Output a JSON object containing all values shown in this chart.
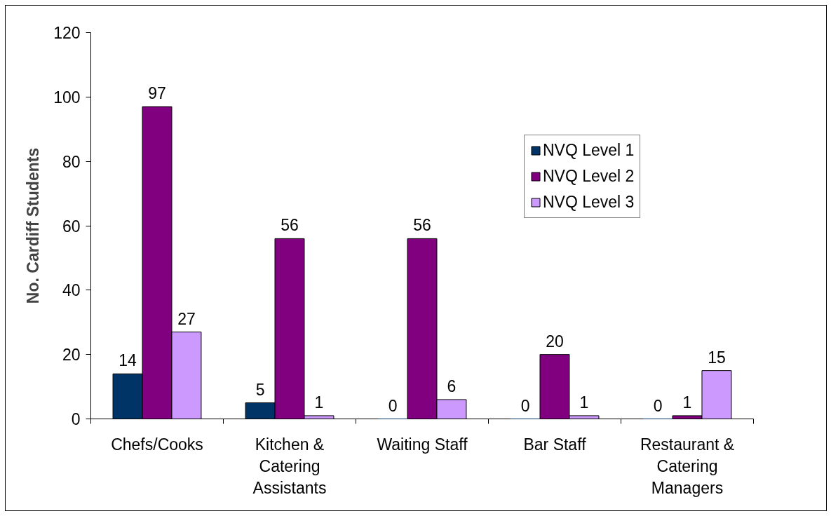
{
  "chart_data": {
    "type": "bar",
    "ylabel": "No. Cardiff Students",
    "categories": [
      "Chefs/Cooks",
      "Kitchen & Catering Assistants",
      "Waiting Staff",
      "Bar Staff",
      "Restaurant & Catering Managers"
    ],
    "series": [
      {
        "name": "NVQ Level 1",
        "color": "#003366",
        "values": [
          14,
          5,
          0,
          0,
          0
        ]
      },
      {
        "name": "NVQ Level 2",
        "color": "#800080",
        "values": [
          97,
          56,
          56,
          20,
          1
        ]
      },
      {
        "name": "NVQ Level 3",
        "color": "#cc99ff",
        "values": [
          27,
          1,
          6,
          1,
          15
        ]
      }
    ],
    "ylim": [
      0,
      120
    ],
    "yticks": [
      0,
      20,
      40,
      60,
      80,
      100,
      120
    ],
    "legend": "top right",
    "data_labels": true
  }
}
